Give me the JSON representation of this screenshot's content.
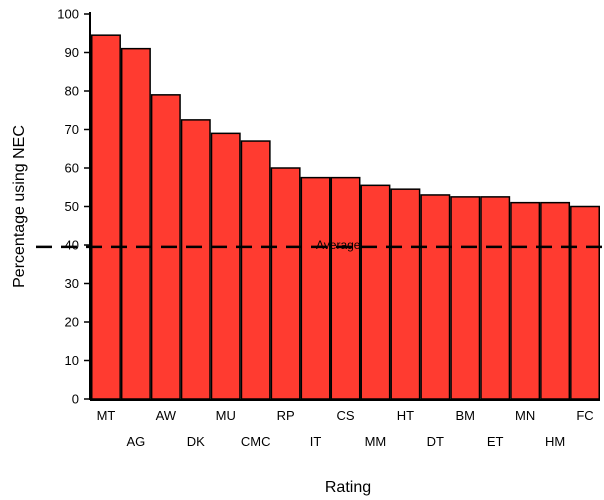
{
  "chart_data": {
    "type": "bar",
    "title": "",
    "xlabel": "Rating",
    "ylabel": "Percentage using NEC",
    "ylim": [
      0,
      100
    ],
    "yticks": [
      0,
      10,
      20,
      30,
      40,
      50,
      60,
      70,
      80,
      90,
      100
    ],
    "grid": false,
    "bar_color": "#ff3b30",
    "categories": [
      "MT",
      "AG",
      "AW",
      "DK",
      "MU",
      "CMC",
      "RP",
      "IT",
      "CS",
      "MM",
      "HT",
      "DT",
      "BM",
      "ET",
      "MN",
      "HM",
      "FC"
    ],
    "values": [
      94.5,
      91,
      79,
      72.5,
      69,
      67,
      60,
      57.5,
      57.5,
      55.5,
      54.5,
      53,
      52.5,
      52.5,
      51,
      51,
      50
    ],
    "average": {
      "label": "Average",
      "value": 39.5
    }
  }
}
